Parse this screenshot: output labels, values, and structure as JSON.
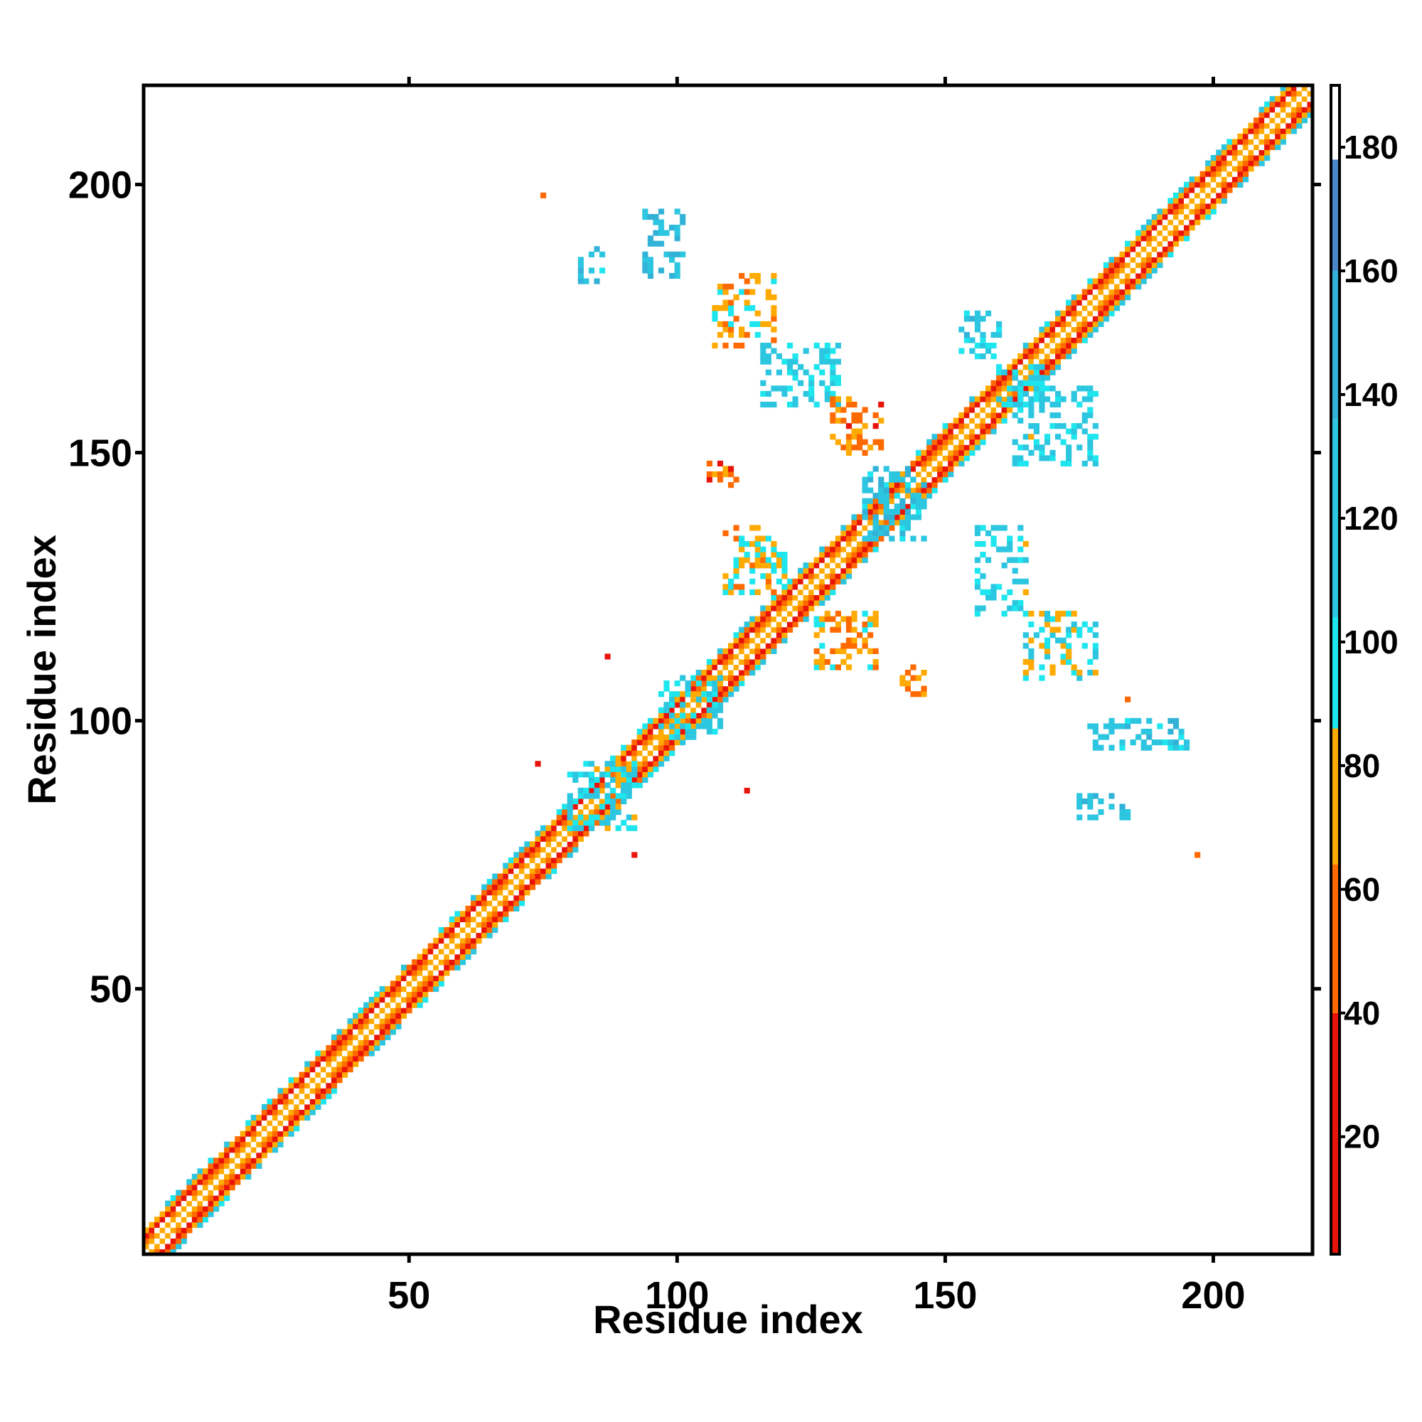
{
  "chart_data": {
    "type": "heatmap",
    "title": "",
    "xlabel": "Residue index",
    "ylabel": "Residue index",
    "xlim": [
      1,
      218
    ],
    "ylim": [
      1,
      218
    ],
    "x_ticks": [
      "50",
      "100",
      "150",
      "200"
    ],
    "x_tick_values": [
      50,
      100,
      150,
      200
    ],
    "y_ticks": [
      "50",
      "100",
      "150",
      "200"
    ],
    "y_tick_values": [
      50,
      100,
      150,
      200
    ],
    "colorbar": {
      "range": [
        1,
        190
      ],
      "ticks": [
        "20",
        "40",
        "60",
        "80",
        "100",
        "120",
        "140",
        "160",
        "180"
      ],
      "tick_values": [
        20,
        40,
        60,
        80,
        100,
        120,
        140,
        160,
        180
      ],
      "bands": [
        {
          "from": 1,
          "to": 40,
          "color": "#e8140a"
        },
        {
          "from": 40,
          "to": 64,
          "color": "#ff6a00"
        },
        {
          "from": 64,
          "to": 86,
          "color": "#ffaa00"
        },
        {
          "from": 86,
          "to": 104,
          "color": "#1ee6ee"
        },
        {
          "from": 104,
          "to": 136,
          "color": "#2cc6e0"
        },
        {
          "from": 136,
          "to": 160,
          "color": "#33b2d8"
        },
        {
          "from": 160,
          "to": 178,
          "color": "#4a86c8"
        },
        {
          "from": 178,
          "to": 190,
          "color": "#ffffff"
        }
      ]
    },
    "diagonal_band": {
      "start": 1,
      "end": 218,
      "half_width": 5
    },
    "contact_clusters": [
      {
        "x": [
          82,
          86
        ],
        "y": [
          182,
          188
        ],
        "value": 120
      },
      {
        "x": [
          94,
          101
        ],
        "y": [
          183,
          195
        ],
        "value": 130
      },
      {
        "x": [
          107,
          118
        ],
        "y": [
          170,
          183
        ],
        "value": 70
      },
      {
        "x": [
          116,
          130
        ],
        "y": [
          159,
          170
        ],
        "value": 110
      },
      {
        "x": [
          129,
          138
        ],
        "y": [
          150,
          160
        ],
        "value": 60
      },
      {
        "x": [
          106,
          112
        ],
        "y": [
          144,
          148
        ],
        "value": 50
      },
      {
        "x": [
          153,
          160
        ],
        "y": [
          168,
          176
        ],
        "value": 115
      },
      {
        "x": [
          163,
          178
        ],
        "y": [
          148,
          162
        ],
        "value": 110
      },
      {
        "x": [
          135,
          146
        ],
        "y": [
          134,
          147
        ],
        "value": 125
      },
      {
        "x": [
          109,
          120
        ],
        "y": [
          124,
          136
        ],
        "value": 80
      },
      {
        "x": [
          126,
          137
        ],
        "y": [
          110,
          120
        ],
        "value": 70
      },
      {
        "x": [
          142,
          146
        ],
        "y": [
          105,
          110
        ],
        "value": 60
      },
      {
        "x": [
          156,
          165
        ],
        "y": [
          120,
          136
        ],
        "value": 110
      },
      {
        "x": [
          165,
          178
        ],
        "y": [
          108,
          120
        ],
        "value": 90
      },
      {
        "x": [
          177,
          195
        ],
        "y": [
          95,
          100
        ],
        "value": 120
      },
      {
        "x": [
          175,
          184
        ],
        "y": [
          82,
          86
        ],
        "value": 130
      },
      {
        "x": [
          97,
          108
        ],
        "y": [
          97,
          108
        ],
        "value": 105
      },
      {
        "x": [
          80,
          92
        ],
        "y": [
          80,
          92
        ],
        "value": 105
      },
      {
        "x": [
          160,
          168
        ],
        "y": [
          158,
          166
        ],
        "value": 110
      }
    ],
    "isolated_points": [
      {
        "x": 75,
        "y": 198,
        "value": 50
      },
      {
        "x": 87,
        "y": 112,
        "value": 20
      },
      {
        "x": 113,
        "y": 87,
        "value": 20
      },
      {
        "x": 74,
        "y": 92,
        "value": 20
      },
      {
        "x": 92,
        "y": 75,
        "value": 20
      },
      {
        "x": 197,
        "y": 75,
        "value": 50
      },
      {
        "x": 184,
        "y": 104,
        "value": 60
      }
    ]
  }
}
